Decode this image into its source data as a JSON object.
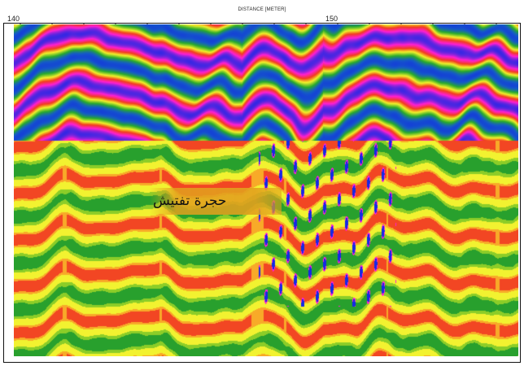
{
  "axis": {
    "title": "DISTANCE [METER]",
    "ticks": [
      "140",
      "150"
    ]
  },
  "annotation": {
    "text": "حجرة تفتيش"
  },
  "colors": {
    "magenta": "#ff1fd2",
    "blue": "#1428e6",
    "green": "#1c9c2a",
    "yellow": "#f2f22a",
    "red": "#f23a1e",
    "label_bg": "#e2a01e"
  }
}
